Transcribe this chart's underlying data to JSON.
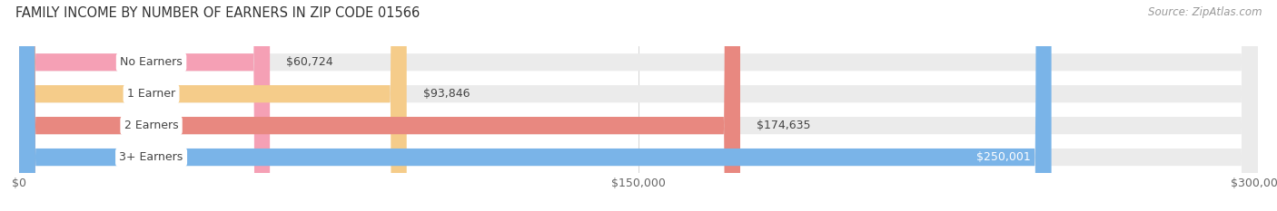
{
  "title": "FAMILY INCOME BY NUMBER OF EARNERS IN ZIP CODE 01566",
  "source": "Source: ZipAtlas.com",
  "categories": [
    "No Earners",
    "1 Earner",
    "2 Earners",
    "3+ Earners"
  ],
  "values": [
    60724,
    93846,
    174635,
    250001
  ],
  "bar_colors": [
    "#f5a0b5",
    "#f5cc8a",
    "#e88880",
    "#7ab4e8"
  ],
  "bar_bg_color": "#ebebeb",
  "label_bg_colors": [
    "#f5a0b5",
    "#f5cc8a",
    "#e88880",
    "#7ab4e8"
  ],
  "label_text_color": "#444444",
  "xlim": [
    0,
    300000
  ],
  "xticks": [
    0,
    150000,
    300000
  ],
  "xtick_labels": [
    "$0",
    "$150,000",
    "$300,000"
  ],
  "value_labels": [
    "$60,724",
    "$93,846",
    "$174,635",
    "$250,001"
  ],
  "value_label_inside": [
    false,
    false,
    false,
    true
  ],
  "background_color": "#ffffff",
  "title_fontsize": 10.5,
  "source_fontsize": 8.5,
  "bar_label_fontsize": 9,
  "value_label_fontsize": 9,
  "axis_label_fontsize": 9,
  "bar_height": 0.55,
  "bar_gap": 0.15,
  "rounding_size": 0.25
}
